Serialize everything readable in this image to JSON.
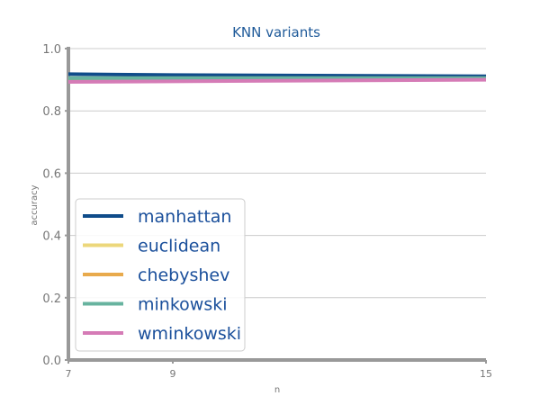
{
  "chart_data": {
    "type": "line",
    "title": "KNN variants",
    "xlabel": "n",
    "ylabel": "accuracy",
    "xlim": [
      7,
      15
    ],
    "ylim": [
      0.0,
      1.0
    ],
    "x_ticks": [
      "7",
      "9",
      "15"
    ],
    "y_ticks": [
      "0.0",
      "0.2",
      "0.4",
      "0.6",
      "0.8",
      "1.0"
    ],
    "grid": "horizontal",
    "legend_position": "lower-left",
    "x": [
      7,
      9,
      15
    ],
    "series": [
      {
        "name": "manhattan",
        "color": "#0f4c8a",
        "values": [
          0.918,
          0.915,
          0.911
        ]
      },
      {
        "name": "euclidean",
        "color": "#ecd77b",
        "values": [
          0.905,
          0.905,
          0.905
        ]
      },
      {
        "name": "chebyshev",
        "color": "#e8aa4c",
        "values": [
          0.904,
          0.904,
          0.904
        ]
      },
      {
        "name": "minkowski",
        "color": "#67b39f",
        "values": [
          0.905,
          0.905,
          0.905
        ]
      },
      {
        "name": "wminkowski",
        "color": "#d57bb6",
        "values": [
          0.893,
          0.895,
          0.9
        ]
      }
    ]
  }
}
